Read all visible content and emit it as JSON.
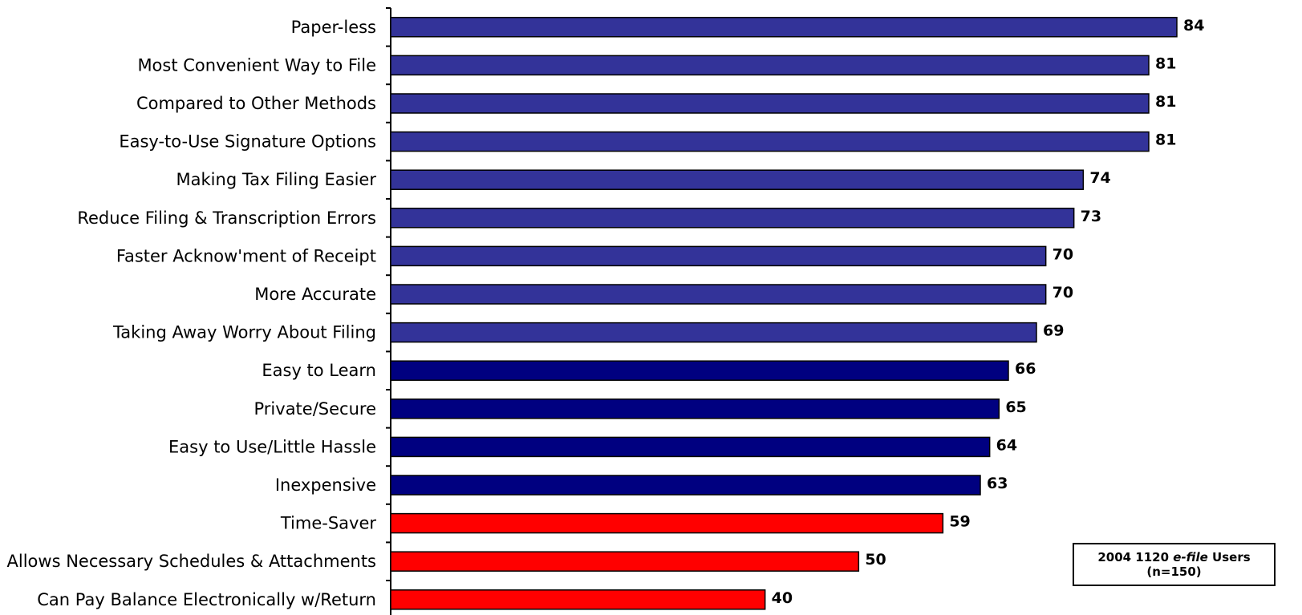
{
  "chart_data": {
    "type": "bar",
    "orientation": "horizontal",
    "categories": [
      "Paper-less",
      "Most Convenient Way to File",
      "Compared to Other Methods",
      "Easy-to-Use Signature Options",
      "Making Tax Filing Easier",
      "Reduce Filing & Transcription Errors",
      "Faster Acknow'ment of Receipt",
      "More Accurate",
      "Taking Away Worry About Filing",
      "Easy to Learn",
      "Private/Secure",
      "Easy to Use/Little Hassle",
      "Inexpensive",
      "Time-Saver",
      "Allows Necessary Schedules & Attachments",
      "Can Pay Balance Electronically w/Return"
    ],
    "values": [
      84,
      81,
      81,
      81,
      74,
      73,
      70,
      70,
      69,
      66,
      65,
      64,
      63,
      59,
      50,
      40
    ],
    "bar_colors": [
      "#333399",
      "#333399",
      "#333399",
      "#333399",
      "#333399",
      "#333399",
      "#333399",
      "#333399",
      "#333399",
      "#000080",
      "#000080",
      "#000080",
      "#000080",
      "#ff0000",
      "#ff0000",
      "#ff0000"
    ],
    "xlim": [
      0,
      84
    ],
    "grid": false,
    "legend": "none",
    "title": "",
    "xlabel": "",
    "ylabel": ""
  },
  "note": {
    "line1_prefix": "2004 1120 ",
    "line1_italic": "e-file",
    "line1_suffix": " Users",
    "line2": "(n=150)"
  }
}
